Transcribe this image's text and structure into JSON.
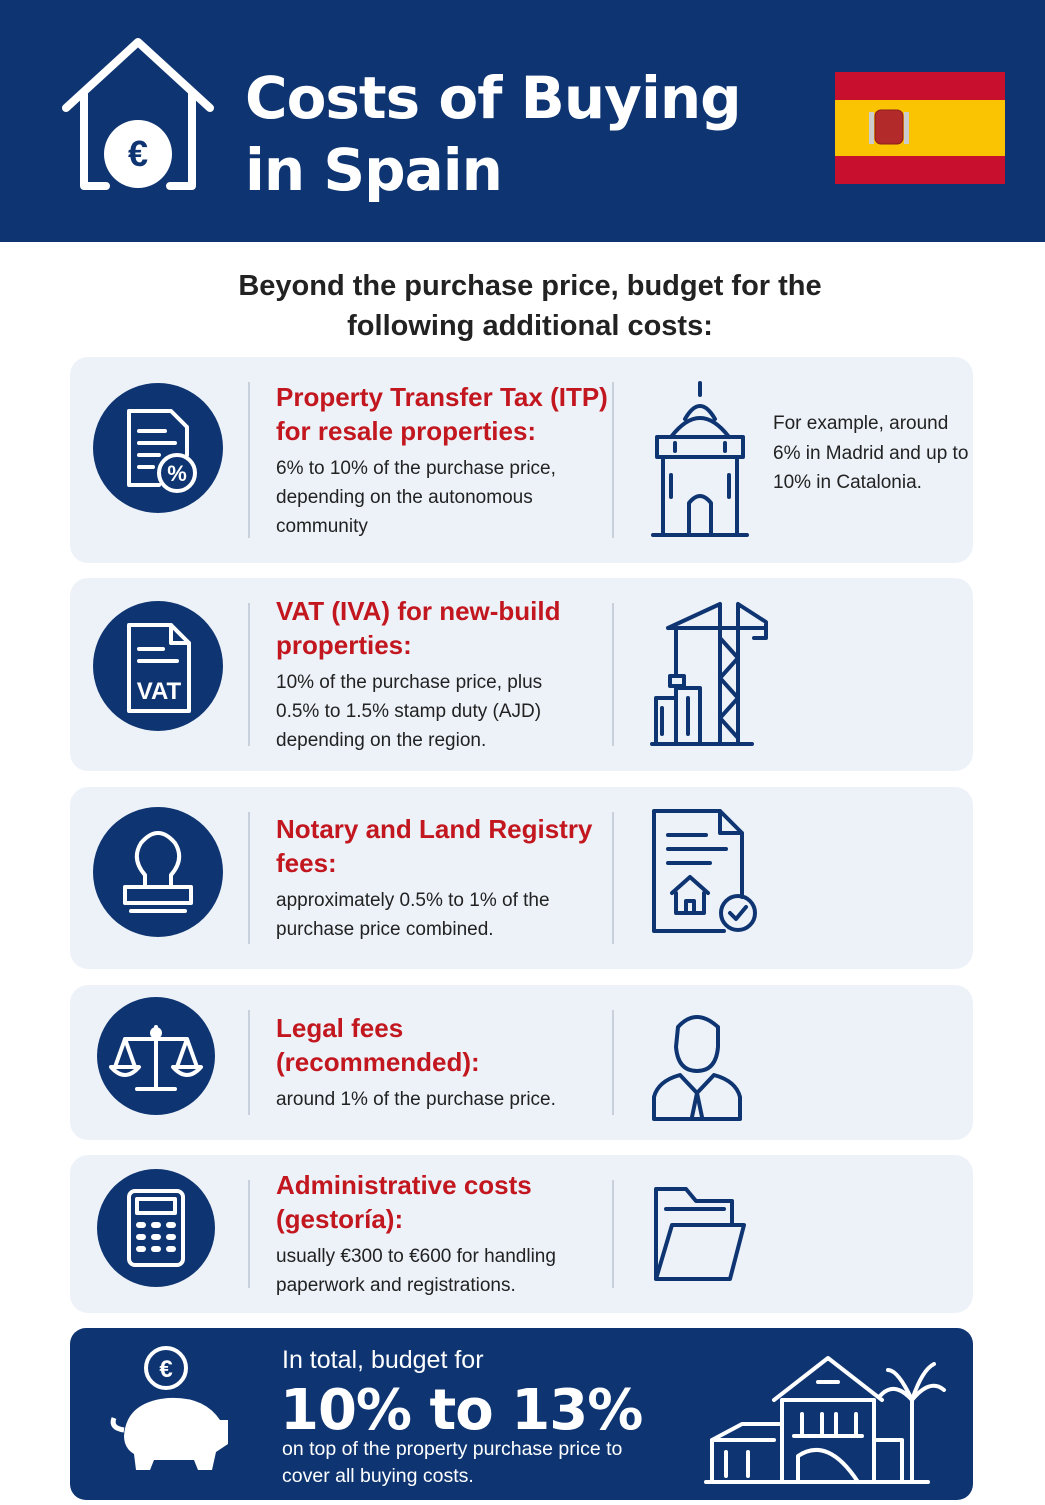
{
  "header": {
    "title": "Costs of Buying in Spain",
    "icon_label": "€"
  },
  "intro": "Beyond the purchase price, budget for the following additional costs:",
  "items": [
    {
      "title": "Property Transfer Tax (ITP) for resale properties:",
      "description": "6% to 10% of the purchase price, depending on the autonomous community",
      "example": "For example, around 6% in Madrid and up to 10% in Catalonia.",
      "icon_label": "%"
    },
    {
      "title": "VAT (IVA) for new-build properties:",
      "description": "10% of the purchase price, plus 0.5% to 1.5% stamp duty (AJD) depending on the region.",
      "icon_label": "VAT"
    },
    {
      "title": "Notary and Land Registry fees:",
      "description": "approximately 0.5% to 1% of the purchase price combined."
    },
    {
      "title": "Legal fees (recommended):",
      "description": "around 1% of the purchase price."
    },
    {
      "title": "Administrative costs (gestoría):",
      "description": "usually €300 to €600 for handling paperwork and registrations."
    }
  ],
  "summary": {
    "lead": "In total, budget for",
    "range": "10% to 13%",
    "note": "on top of the property purchase price to cover all buying costs.",
    "icon_label": "€"
  }
}
